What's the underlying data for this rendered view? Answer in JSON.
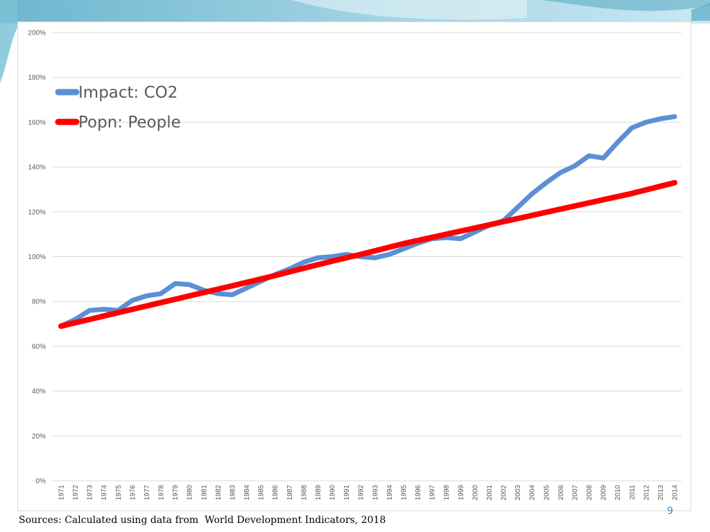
{
  "slide": {
    "source_note": "Sources: Calculated using data from  World Development Indicators, 2018",
    "page_number": "9",
    "accent_color": "#7ec3d6"
  },
  "chart_data": {
    "type": "line",
    "title": "",
    "xlabel": "",
    "ylabel": "",
    "y_ticks": [
      "0%",
      "20%",
      "40%",
      "60%",
      "80%",
      "100%",
      "120%",
      "140%",
      "160%",
      "180%",
      "200%"
    ],
    "ylim": [
      0,
      200
    ],
    "grid": true,
    "legend_position": "top-left",
    "x": [
      1971,
      1972,
      1973,
      1974,
      1975,
      1976,
      1977,
      1978,
      1979,
      1980,
      1981,
      1982,
      1983,
      1984,
      1985,
      1986,
      1987,
      1988,
      1989,
      1990,
      1991,
      1992,
      1993,
      1994,
      1995,
      1996,
      1997,
      1998,
      1999,
      2000,
      2001,
      2002,
      2003,
      2004,
      2005,
      2006,
      2007,
      2008,
      2009,
      2010,
      2011,
      2012,
      2013,
      2014
    ],
    "series": [
      {
        "name": "Impact: CO2",
        "color": "#5b8fd6",
        "values": [
          69,
          72,
          76,
          76.5,
          76,
          80.5,
          82.5,
          83.5,
          88,
          87.5,
          85,
          83.5,
          83,
          86,
          89,
          92,
          94.5,
          97.5,
          99.5,
          100,
          101,
          100,
          99.5,
          101,
          103.5,
          106,
          108,
          108.5,
          108,
          111,
          114,
          116,
          122,
          128,
          133,
          137.5,
          140.5,
          145,
          144,
          151,
          157.5,
          160,
          161.5,
          162.5
        ]
      },
      {
        "name": "Popn: People",
        "color": "#ff0000",
        "values": [
          69,
          70.5,
          72,
          73.5,
          75,
          76.5,
          78,
          79.5,
          81,
          82.5,
          84,
          85.5,
          87,
          88.5,
          90,
          91.6,
          93.2,
          94.8,
          96.4,
          98,
          99.5,
          101,
          102.6,
          104.2,
          105.8,
          107.2,
          108.6,
          110,
          111.4,
          112.8,
          114.2,
          115.6,
          117,
          118.4,
          119.8,
          121.2,
          122.6,
          124,
          125.4,
          126.8,
          128.2,
          129.8,
          131.4,
          133
        ]
      }
    ]
  }
}
